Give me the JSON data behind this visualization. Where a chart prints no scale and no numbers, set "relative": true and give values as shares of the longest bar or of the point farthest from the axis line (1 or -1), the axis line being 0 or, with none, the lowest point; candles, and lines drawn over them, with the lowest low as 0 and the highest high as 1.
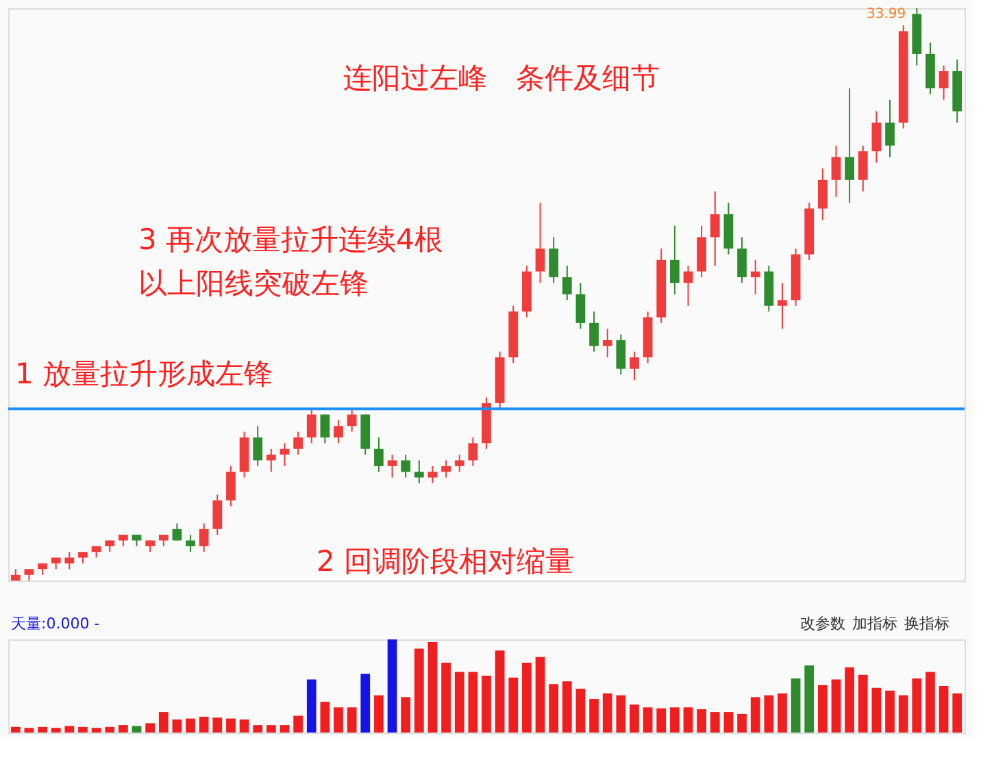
{
  "chart_data": [
    {
      "type": "candlestick",
      "relative": true,
      "title": "连阳过左峰　条件及细节",
      "tick_labels": false,
      "categories": [
        null,
        null,
        null,
        null,
        null,
        null,
        null,
        null,
        null,
        null,
        null,
        null,
        null,
        null,
        null,
        null,
        null,
        null,
        null,
        null,
        null,
        null,
        null,
        null,
        null,
        null,
        null,
        null,
        null,
        null,
        null,
        null,
        null,
        null,
        null,
        null,
        null,
        null,
        null,
        null,
        null,
        null,
        null,
        null,
        null,
        null,
        null,
        null,
        null,
        null,
        null,
        null,
        null,
        null,
        null,
        null,
        null,
        null,
        null,
        null,
        null,
        null,
        null,
        null,
        null,
        null,
        null,
        null,
        null,
        null,
        null
      ],
      "ohlc": [
        [
          0.0,
          0.02,
          0.0,
          0.01
        ],
        [
          0.01,
          0.02,
          0.0,
          0.02
        ],
        [
          0.02,
          0.03,
          0.01,
          0.03
        ],
        [
          0.03,
          0.04,
          0.02,
          0.04
        ],
        [
          0.03,
          0.05,
          0.02,
          0.04
        ],
        [
          0.04,
          0.05,
          0.03,
          0.05
        ],
        [
          0.05,
          0.06,
          0.04,
          0.06
        ],
        [
          0.06,
          0.07,
          0.05,
          0.07
        ],
        [
          0.07,
          0.08,
          0.06,
          0.08
        ],
        [
          0.08,
          0.08,
          0.06,
          0.07
        ],
        [
          0.06,
          0.07,
          0.05,
          0.07
        ],
        [
          0.07,
          0.08,
          0.06,
          0.08
        ],
        [
          0.09,
          0.1,
          0.07,
          0.07
        ],
        [
          0.07,
          0.08,
          0.05,
          0.06
        ],
        [
          0.06,
          0.1,
          0.05,
          0.09
        ],
        [
          0.09,
          0.15,
          0.08,
          0.14
        ],
        [
          0.14,
          0.2,
          0.13,
          0.19
        ],
        [
          0.19,
          0.26,
          0.18,
          0.25
        ],
        [
          0.25,
          0.27,
          0.2,
          0.21
        ],
        [
          0.21,
          0.23,
          0.19,
          0.22
        ],
        [
          0.22,
          0.24,
          0.2,
          0.23
        ],
        [
          0.23,
          0.26,
          0.22,
          0.25
        ],
        [
          0.25,
          0.3,
          0.24,
          0.29
        ],
        [
          0.29,
          0.29,
          0.24,
          0.25
        ],
        [
          0.25,
          0.28,
          0.24,
          0.27
        ],
        [
          0.27,
          0.3,
          0.26,
          0.29
        ],
        [
          0.29,
          0.29,
          0.22,
          0.23
        ],
        [
          0.23,
          0.25,
          0.19,
          0.2
        ],
        [
          0.2,
          0.22,
          0.18,
          0.21
        ],
        [
          0.21,
          0.22,
          0.18,
          0.19
        ],
        [
          0.19,
          0.21,
          0.17,
          0.18
        ],
        [
          0.18,
          0.2,
          0.17,
          0.19
        ],
        [
          0.19,
          0.21,
          0.18,
          0.2
        ],
        [
          0.2,
          0.22,
          0.19,
          0.21
        ],
        [
          0.21,
          0.25,
          0.2,
          0.24
        ],
        [
          0.24,
          0.32,
          0.23,
          0.31
        ],
        [
          0.31,
          0.4,
          0.3,
          0.39
        ],
        [
          0.39,
          0.48,
          0.38,
          0.47
        ],
        [
          0.47,
          0.55,
          0.46,
          0.54
        ],
        [
          0.54,
          0.66,
          0.52,
          0.58
        ],
        [
          0.58,
          0.6,
          0.52,
          0.53
        ],
        [
          0.53,
          0.55,
          0.49,
          0.5
        ],
        [
          0.5,
          0.52,
          0.44,
          0.45
        ],
        [
          0.45,
          0.47,
          0.4,
          0.41
        ],
        [
          0.41,
          0.44,
          0.39,
          0.42
        ],
        [
          0.42,
          0.43,
          0.36,
          0.37
        ],
        [
          0.37,
          0.4,
          0.35,
          0.39
        ],
        [
          0.39,
          0.47,
          0.38,
          0.46
        ],
        [
          0.46,
          0.58,
          0.45,
          0.56
        ],
        [
          0.56,
          0.62,
          0.5,
          0.52
        ],
        [
          0.52,
          0.55,
          0.48,
          0.54
        ],
        [
          0.54,
          0.62,
          0.53,
          0.6
        ],
        [
          0.6,
          0.68,
          0.55,
          0.64
        ],
        [
          0.64,
          0.66,
          0.57,
          0.58
        ],
        [
          0.58,
          0.6,
          0.52,
          0.53
        ],
        [
          0.53,
          0.56,
          0.5,
          0.54
        ],
        [
          0.54,
          0.55,
          0.47,
          0.48
        ],
        [
          0.48,
          0.52,
          0.44,
          0.49
        ],
        [
          0.49,
          0.58,
          0.48,
          0.57
        ],
        [
          0.57,
          0.66,
          0.56,
          0.65
        ],
        [
          0.65,
          0.72,
          0.63,
          0.7
        ],
        [
          0.7,
          0.76,
          0.67,
          0.74
        ],
        [
          0.74,
          0.86,
          0.66,
          0.7
        ],
        [
          0.7,
          0.76,
          0.68,
          0.75
        ],
        [
          0.75,
          0.82,
          0.73,
          0.8
        ],
        [
          0.8,
          0.84,
          0.74,
          0.76
        ],
        [
          0.8,
          0.97,
          0.79,
          0.96
        ],
        [
          0.99,
          1.0,
          0.9,
          0.92
        ],
        [
          0.92,
          0.94,
          0.85,
          0.86
        ],
        [
          0.86,
          0.9,
          0.84,
          0.89
        ],
        [
          0.89,
          0.91,
          0.8,
          0.82
        ]
      ],
      "colors": [
        "#f03c3c",
        "#f03c3c",
        "#f03c3c",
        "#f03c3c",
        "#f03c3c",
        "#f03c3c",
        "#f03c3c",
        "#f03c3c",
        "#f03c3c",
        "#2e8b2e",
        "#f03c3c",
        "#f03c3c",
        "#2e8b2e",
        "#2e8b2e",
        "#f03c3c",
        "#f03c3c",
        "#f03c3c",
        "#f03c3c",
        "#2e8b2e",
        "#f03c3c",
        "#f03c3c",
        "#f03c3c",
        "#f03c3c",
        "#2e8b2e",
        "#f03c3c",
        "#f03c3c",
        "#2e8b2e",
        "#2e8b2e",
        "#f03c3c",
        "#2e8b2e",
        "#2e8b2e",
        "#f03c3c",
        "#f03c3c",
        "#f03c3c",
        "#f03c3c",
        "#f03c3c",
        "#f03c3c",
        "#f03c3c",
        "#f03c3c",
        "#f03c3c",
        "#2e8b2e",
        "#2e8b2e",
        "#2e8b2e",
        "#2e8b2e",
        "#f03c3c",
        "#2e8b2e",
        "#f03c3c",
        "#f03c3c",
        "#f03c3c",
        "#2e8b2e",
        "#f03c3c",
        "#f03c3c",
        "#f03c3c",
        "#2e8b2e",
        "#2e8b2e",
        "#f03c3c",
        "#2e8b2e",
        "#f03c3c",
        "#f03c3c",
        "#f03c3c",
        "#f03c3c",
        "#f03c3c",
        "#2e8b2e",
        "#f03c3c",
        "#f03c3c",
        "#2e8b2e",
        "#f03c3c",
        "#2e8b2e",
        "#2e8b2e",
        "#f03c3c",
        "#2e8b2e"
      ],
      "ref_lines": [
        {
          "axis": "y",
          "value": 0.3,
          "color": "#1e90ff"
        }
      ],
      "annotations": [
        "3 再次放量拉升连续4根",
        "以上阳线突破左锋",
        "1 放量拉升形成左锋",
        "2 回调阶段相对缩量",
        "33.99"
      ]
    },
    {
      "type": "bar",
      "relative": true,
      "tick_labels": false,
      "categories": [
        null,
        null,
        null,
        null,
        null,
        null,
        null,
        null,
        null,
        null,
        null,
        null,
        null,
        null,
        null,
        null,
        null,
        null,
        null,
        null,
        null,
        null,
        null,
        null,
        null,
        null,
        null,
        null,
        null,
        null,
        null,
        null,
        null,
        null,
        null,
        null,
        null,
        null,
        null,
        null,
        null,
        null,
        null,
        null,
        null,
        null,
        null,
        null,
        null,
        null,
        null,
        null,
        null,
        null,
        null,
        null,
        null,
        null,
        null,
        null,
        null,
        null,
        null,
        null,
        null,
        null,
        null,
        null,
        null,
        null,
        null
      ],
      "values": [
        0.06,
        0.05,
        0.06,
        0.05,
        0.07,
        0.06,
        0.05,
        0.06,
        0.08,
        0.07,
        0.1,
        0.22,
        0.14,
        0.15,
        0.17,
        0.16,
        0.15,
        0.14,
        0.08,
        0.08,
        0.08,
        0.18,
        0.57,
        0.33,
        0.27,
        0.27,
        0.63,
        0.4,
        1.0,
        0.38,
        0.9,
        0.97,
        0.75,
        0.65,
        0.65,
        0.61,
        0.88,
        0.59,
        0.75,
        0.81,
        0.52,
        0.55,
        0.47,
        0.36,
        0.42,
        0.4,
        0.3,
        0.27,
        0.26,
        0.27,
        0.27,
        0.25,
        0.22,
        0.22,
        0.2,
        0.38,
        0.4,
        0.42,
        0.58,
        0.72,
        0.51,
        0.57,
        0.7,
        0.62,
        0.48,
        0.45,
        0.4,
        0.58,
        0.65,
        0.5,
        0.42
      ],
      "colors": [
        "#f01e1e",
        "#f01e1e",
        "#f01e1e",
        "#f01e1e",
        "#f01e1e",
        "#f01e1e",
        "#f01e1e",
        "#f01e1e",
        "#f01e1e",
        "#2e8b2e",
        "#f01e1e",
        "#f01e1e",
        "#f01e1e",
        "#f01e1e",
        "#f01e1e",
        "#f01e1e",
        "#f01e1e",
        "#f01e1e",
        "#f01e1e",
        "#f01e1e",
        "#f01e1e",
        "#f01e1e",
        "#1414e6",
        "#f01e1e",
        "#f01e1e",
        "#f01e1e",
        "#1414e6",
        "#f01e1e",
        "#1414e6",
        "#f01e1e",
        "#f01e1e",
        "#f01e1e",
        "#f01e1e",
        "#f01e1e",
        "#f01e1e",
        "#f01e1e",
        "#f01e1e",
        "#f01e1e",
        "#f01e1e",
        "#f01e1e",
        "#f01e1e",
        "#f01e1e",
        "#f01e1e",
        "#f01e1e",
        "#f01e1e",
        "#f01e1e",
        "#f01e1e",
        "#f01e1e",
        "#f01e1e",
        "#f01e1e",
        "#f01e1e",
        "#f01e1e",
        "#f01e1e",
        "#f01e1e",
        "#f01e1e",
        "#f01e1e",
        "#f01e1e",
        "#f01e1e",
        "#2e8b2e",
        "#2e8b2e",
        "#f01e1e",
        "#f01e1e",
        "#f01e1e",
        "#f01e1e",
        "#f01e1e",
        "#f01e1e",
        "#f01e1e",
        "#f01e1e",
        "#f01e1e",
        "#f01e1e",
        "#f01e1e"
      ],
      "annotations": [
        "天量:0.000 -",
        "改参数",
        "加指标",
        "换指标"
      ]
    }
  ]
}
